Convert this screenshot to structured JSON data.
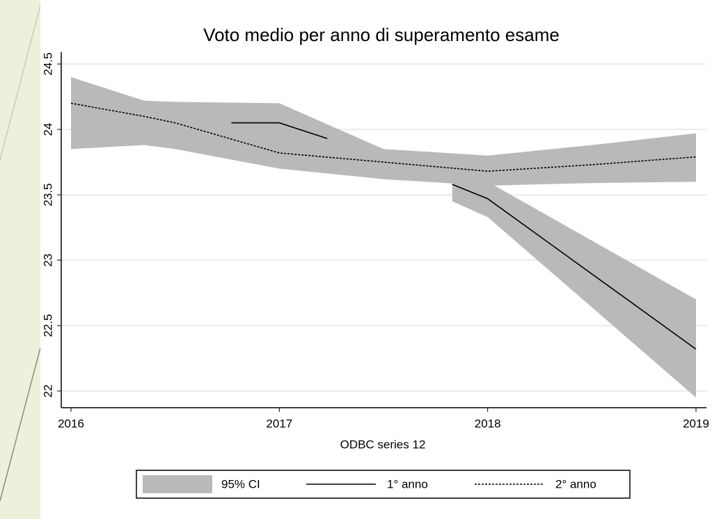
{
  "chart_data": {
    "type": "line",
    "title": "Voto medio per anno di superamento esame",
    "xlabel": "ODBC series 12",
    "ci_label": "95% CI",
    "band_color": "#b9b9b9",
    "xlim": [
      2016,
      2019
    ],
    "xticks": [
      2016,
      2017,
      2018,
      2019
    ],
    "ylim": [
      22,
      24.5
    ],
    "yticks": [
      22,
      22.5,
      23,
      23.5,
      24,
      24.5
    ],
    "grid": true,
    "series": [
      {
        "name": "1° anno",
        "color": "#000000",
        "dashed": false,
        "x": [
          2016.77,
          2017,
          2017.23,
          2017.5,
          2017.83,
          2018,
          2019
        ],
        "values": [
          24.05,
          24.05,
          23.93,
          null,
          23.58,
          23.47,
          22.32
        ],
        "ci_upper": [
          null,
          null,
          null,
          null,
          23.72,
          23.6,
          22.7
        ],
        "ci_lower": [
          null,
          null,
          null,
          null,
          23.45,
          23.33,
          21.95
        ]
      },
      {
        "name": "2° anno",
        "color": "#000000",
        "dashed": true,
        "x": [
          2016,
          2016.35,
          2016.5,
          2017,
          2017.5,
          2018,
          2018.5,
          2019
        ],
        "values": [
          24.2,
          24.1,
          24.05,
          23.82,
          23.75,
          23.68,
          23.73,
          23.79
        ],
        "ci_upper": [
          24.4,
          24.22,
          24.21,
          24.2,
          23.85,
          23.8,
          23.88,
          23.97
        ],
        "ci_lower": [
          23.85,
          23.88,
          23.85,
          23.7,
          23.62,
          23.57,
          23.59,
          23.6
        ]
      }
    ]
  }
}
